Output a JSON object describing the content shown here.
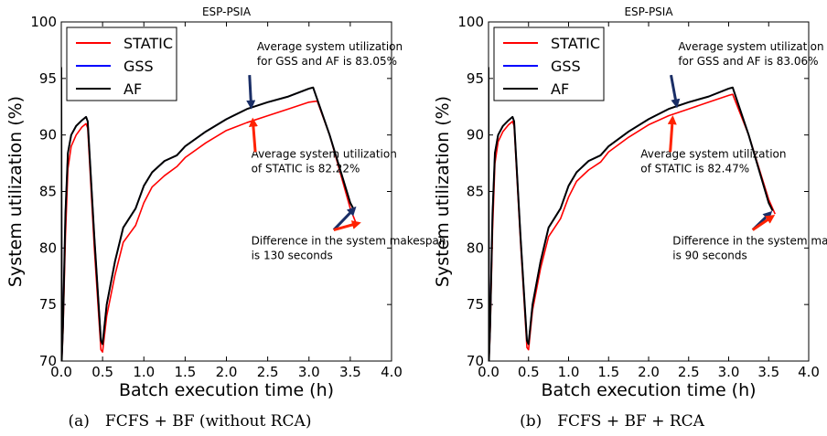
{
  "colors": {
    "STATIC": "#ff0000",
    "GSS": "#0000ff",
    "AF": "#000000",
    "arrow_blue": "#1a2e66",
    "arrow_red": "#ff2200"
  },
  "chart_data": [
    {
      "type": "line",
      "title": "ESP-PSIA",
      "caption": "(a) FCFS + BF (without RCA)",
      "xlabel": "Batch execution time (h)",
      "ylabel": "System utilization (%)",
      "xlim": [
        0.0,
        4.0
      ],
      "ylim": [
        70,
        100
      ],
      "xticks": [
        "0.0",
        "0.5",
        "1.0",
        "1.5",
        "2.0",
        "2.5",
        "3.0",
        "3.5",
        "4.0"
      ],
      "yticks": [
        "70",
        "75",
        "80",
        "85",
        "90",
        "95",
        "100"
      ],
      "grid": false,
      "legend": "top-left",
      "series": [
        {
          "name": "STATIC",
          "points": [
            [
              0.0,
              96.0
            ],
            [
              0.005,
              70.0
            ],
            [
              0.02,
              72.5
            ],
            [
              0.05,
              81.0
            ],
            [
              0.08,
              87.0
            ],
            [
              0.12,
              89.0
            ],
            [
              0.18,
              90.0
            ],
            [
              0.25,
              90.7
            ],
            [
              0.3,
              91.0
            ],
            [
              0.32,
              90.6
            ],
            [
              0.4,
              80.0
            ],
            [
              0.48,
              71.0
            ],
            [
              0.5,
              70.8
            ],
            [
              0.55,
              74.0
            ],
            [
              0.65,
              77.6
            ],
            [
              0.75,
              80.5
            ],
            [
              0.9,
              82.0
            ],
            [
              1.0,
              84.0
            ],
            [
              1.1,
              85.4
            ],
            [
              1.25,
              86.4
            ],
            [
              1.4,
              87.2
            ],
            [
              1.5,
              88.0
            ],
            [
              1.75,
              89.3
            ],
            [
              2.0,
              90.4
            ],
            [
              2.25,
              91.1
            ],
            [
              2.5,
              91.7
            ],
            [
              2.75,
              92.3
            ],
            [
              3.0,
              92.9
            ],
            [
              3.1,
              93.0
            ],
            [
              3.25,
              90.0
            ],
            [
              3.5,
              83.5
            ],
            [
              3.58,
              82.0
            ]
          ]
        },
        {
          "name": "GSS",
          "points": [
            [
              0.0,
              96.0
            ],
            [
              0.005,
              70.0
            ],
            [
              0.02,
              73.0
            ],
            [
              0.05,
              83.0
            ],
            [
              0.08,
              88.4
            ],
            [
              0.12,
              90.0
            ],
            [
              0.18,
              90.8
            ],
            [
              0.25,
              91.3
            ],
            [
              0.3,
              91.6
            ],
            [
              0.32,
              91.2
            ],
            [
              0.4,
              81.0
            ],
            [
              0.48,
              71.8
            ],
            [
              0.5,
              71.5
            ],
            [
              0.55,
              75.0
            ],
            [
              0.65,
              78.8
            ],
            [
              0.75,
              81.8
            ],
            [
              0.9,
              83.5
            ],
            [
              1.0,
              85.5
            ],
            [
              1.1,
              86.7
            ],
            [
              1.25,
              87.7
            ],
            [
              1.4,
              88.2
            ],
            [
              1.5,
              89.0
            ],
            [
              1.75,
              90.3
            ],
            [
              2.0,
              91.4
            ],
            [
              2.25,
              92.3
            ],
            [
              2.5,
              92.9
            ],
            [
              2.75,
              93.4
            ],
            [
              3.0,
              94.1
            ],
            [
              3.05,
              94.2
            ],
            [
              3.25,
              90.0
            ],
            [
              3.5,
              84.0
            ],
            [
              3.55,
              83.3
            ]
          ]
        },
        {
          "name": "AF",
          "points": [
            [
              0.0,
              96.0
            ],
            [
              0.005,
              70.0
            ],
            [
              0.02,
              73.0
            ],
            [
              0.05,
              83.0
            ],
            [
              0.08,
              88.4
            ],
            [
              0.12,
              90.0
            ],
            [
              0.18,
              90.8
            ],
            [
              0.25,
              91.3
            ],
            [
              0.3,
              91.6
            ],
            [
              0.32,
              91.2
            ],
            [
              0.4,
              81.0
            ],
            [
              0.48,
              71.8
            ],
            [
              0.5,
              71.5
            ],
            [
              0.55,
              75.0
            ],
            [
              0.65,
              78.8
            ],
            [
              0.75,
              81.8
            ],
            [
              0.9,
              83.5
            ],
            [
              1.0,
              85.5
            ],
            [
              1.1,
              86.7
            ],
            [
              1.25,
              87.7
            ],
            [
              1.4,
              88.2
            ],
            [
              1.5,
              89.0
            ],
            [
              1.75,
              90.3
            ],
            [
              2.0,
              91.4
            ],
            [
              2.25,
              92.3
            ],
            [
              2.5,
              92.9
            ],
            [
              2.75,
              93.4
            ],
            [
              3.0,
              94.1
            ],
            [
              3.05,
              94.2
            ],
            [
              3.25,
              90.0
            ],
            [
              3.5,
              84.0
            ],
            [
              3.55,
              83.3
            ]
          ]
        }
      ],
      "annotations": [
        {
          "lines": [
            "Average system utilization",
            "for GSS and AF is 83.05%"
          ],
          "text_at": [
            2.37,
            97.5
          ],
          "arrow_from": [
            2.28,
            95.3
          ],
          "arrow_to": [
            2.3,
            92.5
          ],
          "arrow_color": "blue"
        },
        {
          "lines": [
            "Average system utilization",
            "of STATIC is 82.22%"
          ],
          "text_at": [
            2.3,
            88.0
          ],
          "arrow_from": [
            2.35,
            88.5
          ],
          "arrow_to": [
            2.32,
            91.3
          ],
          "arrow_color": "red"
        },
        {
          "lines": [
            "Difference in the system makespan",
            "is 130 seconds"
          ],
          "text_at": [
            2.3,
            80.3
          ],
          "arrow_from": [
            3.3,
            81.6
          ],
          "arrow_to": [
            3.55,
            83.5
          ],
          "arrow_color": "blue"
        },
        {
          "lines": [],
          "text_at": [
            3.3,
            81.6
          ],
          "arrow_from": [
            3.3,
            81.6
          ],
          "arrow_to": [
            3.6,
            82.2
          ],
          "arrow_color": "red"
        }
      ]
    },
    {
      "type": "line",
      "title": "ESP-PSIA",
      "caption": "(b) FCFS + BF + RCA",
      "xlabel": "Batch execution time (h)",
      "ylabel": "System utilization (%)",
      "xlim": [
        0.0,
        4.0
      ],
      "ylim": [
        70,
        100
      ],
      "xticks": [
        "0.0",
        "0.5",
        "1.0",
        "1.5",
        "2.0",
        "2.5",
        "3.0",
        "3.5",
        "4.0"
      ],
      "yticks": [
        "70",
        "75",
        "80",
        "85",
        "90",
        "95",
        "100"
      ],
      "grid": false,
      "legend": "top-left",
      "series": [
        {
          "name": "STATIC",
          "points": [
            [
              0.0,
              96.0
            ],
            [
              0.005,
              70.0
            ],
            [
              0.02,
              72.5
            ],
            [
              0.05,
              81.5
            ],
            [
              0.08,
              87.5
            ],
            [
              0.12,
              89.4
            ],
            [
              0.18,
              90.3
            ],
            [
              0.25,
              90.9
            ],
            [
              0.3,
              91.2
            ],
            [
              0.32,
              90.8
            ],
            [
              0.4,
              80.5
            ],
            [
              0.48,
              71.2
            ],
            [
              0.5,
              71.0
            ],
            [
              0.55,
              74.5
            ],
            [
              0.65,
              78.2
            ],
            [
              0.75,
              81.0
            ],
            [
              0.9,
              82.6
            ],
            [
              1.0,
              84.5
            ],
            [
              1.1,
              85.9
            ],
            [
              1.25,
              86.9
            ],
            [
              1.4,
              87.6
            ],
            [
              1.5,
              88.5
            ],
            [
              1.75,
              89.8
            ],
            [
              2.0,
              90.9
            ],
            [
              2.25,
              91.7
            ],
            [
              2.5,
              92.3
            ],
            [
              2.75,
              92.9
            ],
            [
              3.0,
              93.5
            ],
            [
              3.05,
              93.6
            ],
            [
              3.25,
              90.0
            ],
            [
              3.5,
              84.3
            ],
            [
              3.58,
              83.0
            ]
          ]
        },
        {
          "name": "GSS",
          "points": [
            [
              0.0,
              96.0
            ],
            [
              0.005,
              70.0
            ],
            [
              0.02,
              73.0
            ],
            [
              0.05,
              83.0
            ],
            [
              0.08,
              88.4
            ],
            [
              0.12,
              90.0
            ],
            [
              0.18,
              90.8
            ],
            [
              0.25,
              91.3
            ],
            [
              0.3,
              91.6
            ],
            [
              0.32,
              91.2
            ],
            [
              0.4,
              81.0
            ],
            [
              0.48,
              71.8
            ],
            [
              0.5,
              71.5
            ],
            [
              0.55,
              75.0
            ],
            [
              0.65,
              78.8
            ],
            [
              0.75,
              81.8
            ],
            [
              0.9,
              83.5
            ],
            [
              1.0,
              85.5
            ],
            [
              1.1,
              86.7
            ],
            [
              1.25,
              87.7
            ],
            [
              1.4,
              88.2
            ],
            [
              1.5,
              89.0
            ],
            [
              1.75,
              90.3
            ],
            [
              2.0,
              91.4
            ],
            [
              2.25,
              92.3
            ],
            [
              2.5,
              92.9
            ],
            [
              2.75,
              93.4
            ],
            [
              3.0,
              94.1
            ],
            [
              3.05,
              94.2
            ],
            [
              3.25,
              90.0
            ],
            [
              3.5,
              84.0
            ],
            [
              3.55,
              83.3
            ]
          ]
        },
        {
          "name": "AF",
          "points": [
            [
              0.0,
              96.0
            ],
            [
              0.005,
              70.0
            ],
            [
              0.02,
              73.0
            ],
            [
              0.05,
              83.0
            ],
            [
              0.08,
              88.4
            ],
            [
              0.12,
              90.0
            ],
            [
              0.18,
              90.8
            ],
            [
              0.25,
              91.3
            ],
            [
              0.3,
              91.6
            ],
            [
              0.32,
              91.2
            ],
            [
              0.4,
              81.0
            ],
            [
              0.48,
              71.8
            ],
            [
              0.5,
              71.5
            ],
            [
              0.55,
              75.0
            ],
            [
              0.65,
              78.8
            ],
            [
              0.75,
              81.8
            ],
            [
              0.9,
              83.5
            ],
            [
              1.0,
              85.5
            ],
            [
              1.1,
              86.7
            ],
            [
              1.25,
              87.7
            ],
            [
              1.4,
              88.2
            ],
            [
              1.5,
              89.0
            ],
            [
              1.75,
              90.3
            ],
            [
              2.0,
              91.4
            ],
            [
              2.25,
              92.3
            ],
            [
              2.5,
              92.9
            ],
            [
              2.75,
              93.4
            ],
            [
              3.0,
              94.1
            ],
            [
              3.05,
              94.2
            ],
            [
              3.25,
              90.0
            ],
            [
              3.5,
              84.0
            ],
            [
              3.55,
              83.3
            ]
          ]
        }
      ],
      "annotations": [
        {
          "lines": [
            "Average system utilization",
            "for GSS and AF is 83.06%"
          ],
          "text_at": [
            2.37,
            97.5
          ],
          "arrow_from": [
            2.28,
            95.3
          ],
          "arrow_to": [
            2.35,
            92.6
          ],
          "arrow_color": "blue"
        },
        {
          "lines": [
            "Average system utilization",
            "of STATIC is 82.47%"
          ],
          "text_at": [
            1.9,
            88.0
          ],
          "arrow_from": [
            2.27,
            88.5
          ],
          "arrow_to": [
            2.3,
            91.5
          ],
          "arrow_color": "red"
        },
        {
          "lines": [
            "Difference in the system makespan",
            "is 90 seconds"
          ],
          "text_at": [
            2.3,
            80.3
          ],
          "arrow_from": [
            3.3,
            81.6
          ],
          "arrow_to": [
            3.52,
            83.1
          ],
          "arrow_color": "blue"
        },
        {
          "lines": [],
          "text_at": [
            3.3,
            81.6
          ],
          "arrow_from": [
            3.3,
            81.6
          ],
          "arrow_to": [
            3.55,
            82.8
          ],
          "arrow_color": "red"
        }
      ]
    }
  ]
}
